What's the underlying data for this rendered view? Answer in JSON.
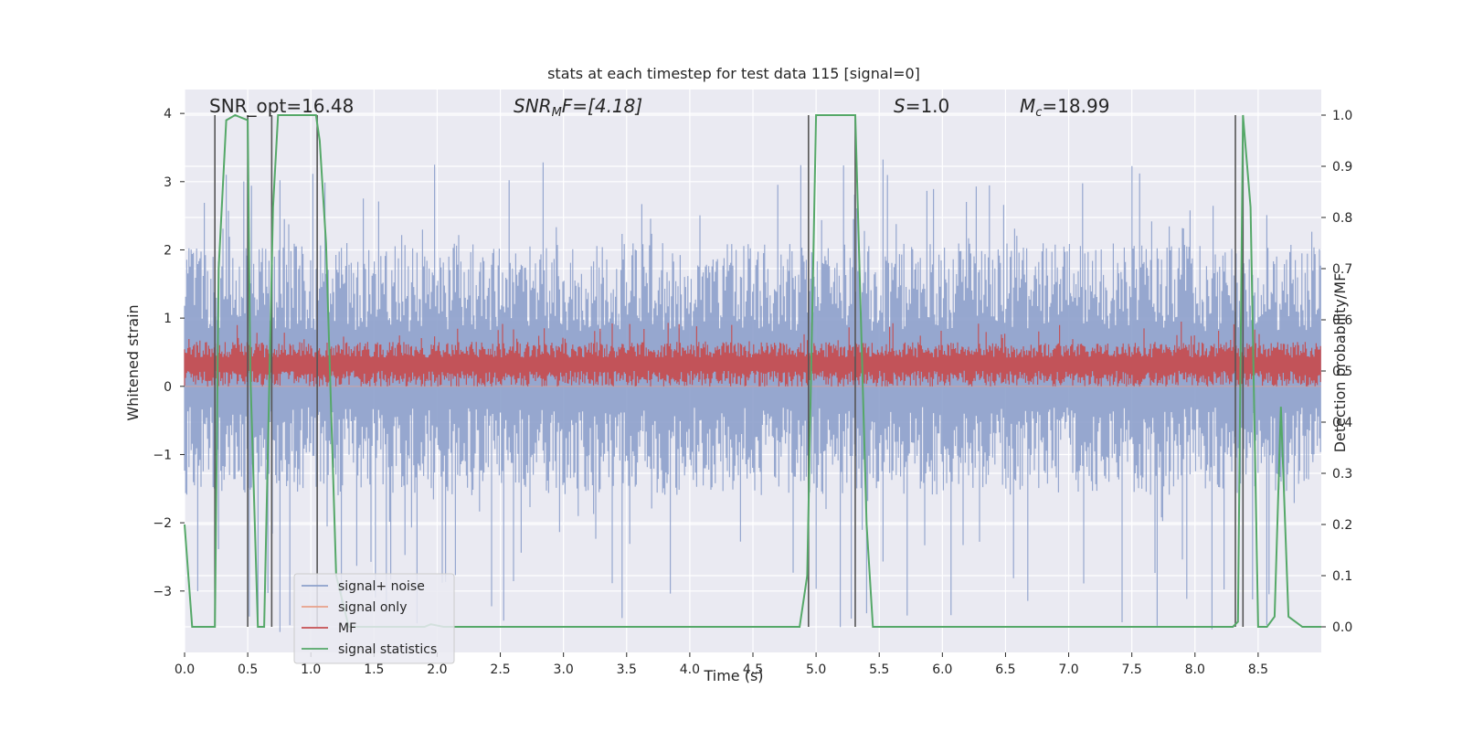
{
  "chart_data": {
    "type": "line",
    "title": "stats at each timestep for test data 115 [signal=0]",
    "xlabel": "Time (s)",
    "ylabel_left": "Whitened strain",
    "ylabel_right": "Detection probability/MF",
    "xlim": [
      0.0,
      9.0
    ],
    "ylim_left": [
      -3.9,
      4.35
    ],
    "ylim_right": [
      -0.05,
      1.05
    ],
    "xticks": [
      "0.0",
      "0.5",
      "1.0",
      "1.5",
      "2.0",
      "2.5",
      "3.0",
      "3.5",
      "4.0",
      "4.5",
      "5.0",
      "5.5",
      "6.0",
      "6.5",
      "7.0",
      "7.5",
      "8.0",
      "8.5"
    ],
    "yticks_left": [
      "4",
      "3",
      "2",
      "1",
      "0",
      "−1",
      "−2",
      "−3"
    ],
    "yticks_right": [
      "1.0",
      "0.9",
      "0.8",
      "0.7",
      "0.6",
      "0.5",
      "0.4",
      "0.3",
      "0.2",
      "0.1",
      "0.0"
    ],
    "grid": true,
    "legend_position": "lower-left",
    "annotations": {
      "snr_opt": "SNR_opt=16.48",
      "snr_mf_base": "SNR",
      "snr_mf_sub": "M",
      "snr_mf_rest": "F=[4.18]",
      "s_label": "S",
      "s_value": "=1.0",
      "mc_base": "M",
      "mc_sub": "c",
      "mc_value": "=18.99"
    },
    "vertical_markers_x": [
      0.24,
      0.5,
      0.69,
      1.05,
      4.94,
      5.31,
      8.32,
      8.38
    ],
    "series": [
      {
        "name": "signal+ noise",
        "color": "#8da0cb",
        "kind": "noise",
        "axis": "left",
        "typical_range": [
          -1.6,
          2.1
        ],
        "peak_range": [
          -3.6,
          3.4
        ]
      },
      {
        "name": "signal only",
        "color": "#e8a08a",
        "kind": "line",
        "axis": "left",
        "x": [
          0.0,
          9.0
        ],
        "y": [
          0.0,
          0.0
        ]
      },
      {
        "name": "MF",
        "color": "#c44e52",
        "kind": "noise",
        "axis": "left",
        "typical_range": [
          0.0,
          0.65
        ],
        "peak_range": [
          0.0,
          0.95
        ]
      },
      {
        "name": "signal statistics",
        "color": "#55a868",
        "kind": "line",
        "axis": "right",
        "x": [
          0.0,
          0.06,
          0.24,
          0.27,
          0.33,
          0.4,
          0.5,
          0.52,
          0.58,
          0.63,
          0.7,
          0.74,
          0.8,
          1.04,
          1.07,
          1.12,
          1.2,
          1.3,
          1.9,
          1.95,
          2.05,
          4.87,
          4.93,
          5.0,
          5.31,
          5.4,
          5.45,
          8.3,
          8.34,
          8.38,
          8.44,
          8.5,
          8.57,
          8.63,
          8.68,
          8.74,
          8.85,
          9.0
        ],
        "y": [
          0.2,
          0.0,
          0.0,
          0.7,
          0.99,
          1.0,
          0.99,
          0.5,
          0.0,
          0.0,
          0.82,
          1.0,
          1.0,
          1.0,
          0.95,
          0.75,
          0.1,
          0.0,
          0.0,
          0.005,
          0.0,
          0.0,
          0.1,
          1.0,
          1.0,
          0.2,
          0.0,
          0.0,
          0.01,
          1.0,
          0.82,
          0.0,
          0.0,
          0.02,
          0.43,
          0.02,
          0.0,
          0.0
        ]
      }
    ]
  }
}
